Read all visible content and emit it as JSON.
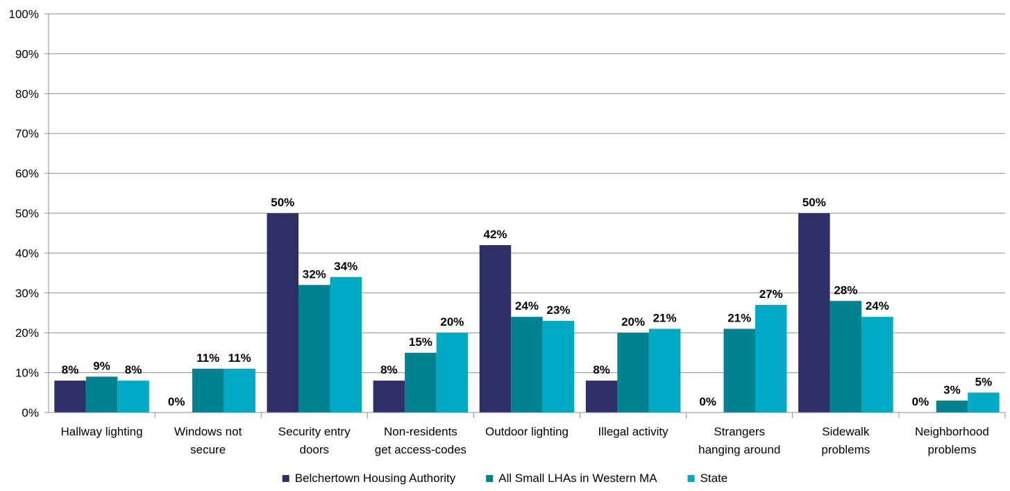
{
  "chart_data": {
    "type": "bar",
    "title": "",
    "xlabel": "",
    "ylabel": "",
    "ylim": [
      0,
      100
    ],
    "y_ticks": [
      "0%",
      "10%",
      "20%",
      "30%",
      "40%",
      "50%",
      "60%",
      "70%",
      "80%",
      "90%",
      "100%"
    ],
    "y_tick_values": [
      0,
      10,
      20,
      30,
      40,
      50,
      60,
      70,
      80,
      90,
      100
    ],
    "grid": true,
    "legend_position": "bottom",
    "categories": [
      [
        "Hallway lighting"
      ],
      [
        "Windows not",
        "secure"
      ],
      [
        "Security entry",
        "doors"
      ],
      [
        "Non-residents",
        "get access-codes"
      ],
      [
        "Outdoor lighting"
      ],
      [
        "Illegal activity"
      ],
      [
        "Strangers",
        "hanging around"
      ],
      [
        "Sidewalk",
        "problems"
      ],
      [
        "Neighborhood",
        "problems"
      ]
    ],
    "series": [
      {
        "name": "Belchertown Housing Authority",
        "color": "#2e2f66",
        "values": [
          8,
          0,
          50,
          8,
          42,
          8,
          0,
          50,
          0
        ],
        "labels": [
          "8%",
          "0%",
          "50%",
          "8%",
          "42%",
          "8%",
          "0%",
          "50%",
          "0%"
        ]
      },
      {
        "name": "All Small LHAs in Western MA",
        "color": "#008290",
        "values": [
          9,
          11,
          32,
          15,
          24,
          20,
          21,
          28,
          3
        ],
        "labels": [
          "9%",
          "11%",
          "32%",
          "15%",
          "24%",
          "20%",
          "21%",
          "28%",
          "3%"
        ]
      },
      {
        "name": "State",
        "color": "#00aac4",
        "values": [
          8,
          11,
          34,
          20,
          23,
          21,
          27,
          24,
          5
        ],
        "labels": [
          "8%",
          "11%",
          "34%",
          "20%",
          "23%",
          "21%",
          "27%",
          "24%",
          "5%"
        ]
      }
    ]
  }
}
